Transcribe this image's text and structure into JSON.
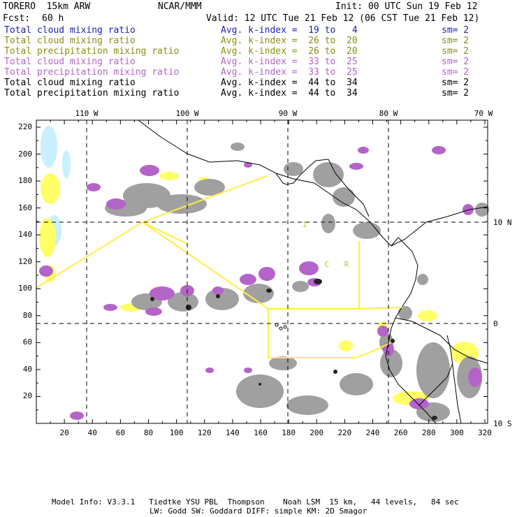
{
  "header": {
    "model": "TORERO  15km ARW",
    "center": "NCAR/MMM",
    "init": "Init: 00 UTC Sun 19 Feb 12",
    "fcst_label": "Fcst:",
    "fcst_value": "60 h",
    "valid": "Valid: 12 UTC Tue 21 Feb 12 (06 CST Tue 21 Feb 12)"
  },
  "legend": [
    {
      "name": "Total cloud mixing ratio",
      "kidx": "Avg. k-index =  19 to   4",
      "sm": "sm= 2",
      "color": "#1e1eb4"
    },
    {
      "name": "Total cloud mixing ratio",
      "kidx": "Avg. k-index =  26 to  20",
      "sm": "sm= 2",
      "color": "#8c8c14"
    },
    {
      "name": "Total precipitation mixing ratio",
      "kidx": "Avg. k-index =  26 to  20",
      "sm": "sm= 2",
      "color": "#8c8c14"
    },
    {
      "name": "Total cloud mixing ratio",
      "kidx": "Avg. k-index =  33 to  25",
      "sm": "sm= 2",
      "color": "#b464c8"
    },
    {
      "name": "Total precipitation mixing ratio",
      "kidx": "Avg. k-index =  33 to  25",
      "sm": "sm= 2",
      "color": "#b464c8"
    },
    {
      "name": "Total cloud mixing ratio",
      "kidx": "Avg. k-index =  44 to  34",
      "sm": "sm= 2",
      "color": "#000000"
    },
    {
      "name": "Total precipitation mixing ratio",
      "kidx": "Avg. k-index =  44 to  34",
      "sm": "sm= 2",
      "color": "#000000"
    }
  ],
  "axes": {
    "top_lon_labels": [
      "110 W",
      "100 W",
      "90 W",
      "80 W",
      "70 W"
    ],
    "right_lat_labels": [
      "10 N",
      "0",
      "10 S"
    ],
    "left_labels": [
      "220",
      "200",
      "180",
      "160",
      "140",
      "120",
      "100",
      "80",
      "60",
      "40",
      "20"
    ],
    "bottom_labels": [
      "20",
      "40",
      "60",
      "80",
      "100",
      "120",
      "140",
      "160",
      "180",
      "200",
      "220",
      "240",
      "260",
      "280",
      "300",
      "320"
    ]
  },
  "map_letters": [
    "C",
    "R",
    "I"
  ],
  "colors": {
    "cloud_light": "#ffff66",
    "cloud_cyan": "#c8f0ff",
    "precip_purple": "#b464c8",
    "gray": "#a0a0a0",
    "dark": "#222222",
    "domain_box": "#ffee44",
    "coast": "#000000"
  },
  "footer": {
    "line1": "Model Info: V3.3.1   Tiedtke YSU PBL  Thompson    Noah LSM  15 km,   44 levels,   84 sec",
    "line2": "LW: Godd SW: Goddard DIFF: simple KM: 2D Smagor"
  }
}
